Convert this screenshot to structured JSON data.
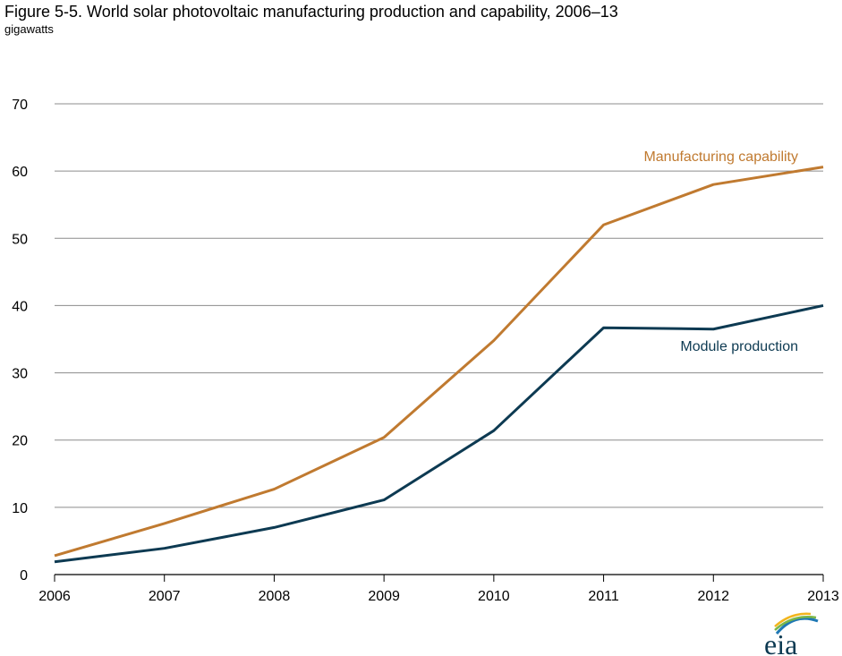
{
  "header": {
    "title": "Figure 5-5. World solar photovoltaic manufacturing production and capability, 2006–13",
    "subtitle": "gigawatts"
  },
  "logo": {
    "text": "eia"
  },
  "chart_data": {
    "type": "line",
    "x": [
      "2006",
      "2007",
      "2008",
      "2009",
      "2010",
      "2011",
      "2012",
      "2013"
    ],
    "ylim": [
      0,
      70
    ],
    "yticks": [
      0,
      10,
      20,
      30,
      40,
      50,
      60,
      70
    ],
    "grid": true,
    "series": [
      {
        "name": "Manufacturing capability",
        "color": "#c07a30",
        "values": [
          2.8,
          7.6,
          12.7,
          20.4,
          34.8,
          52.0,
          58.0,
          60.6
        ]
      },
      {
        "name": "Module production",
        "color": "#0d3a52",
        "values": [
          1.9,
          3.9,
          7.0,
          11.1,
          21.4,
          36.7,
          36.5,
          40.0
        ]
      }
    ]
  }
}
